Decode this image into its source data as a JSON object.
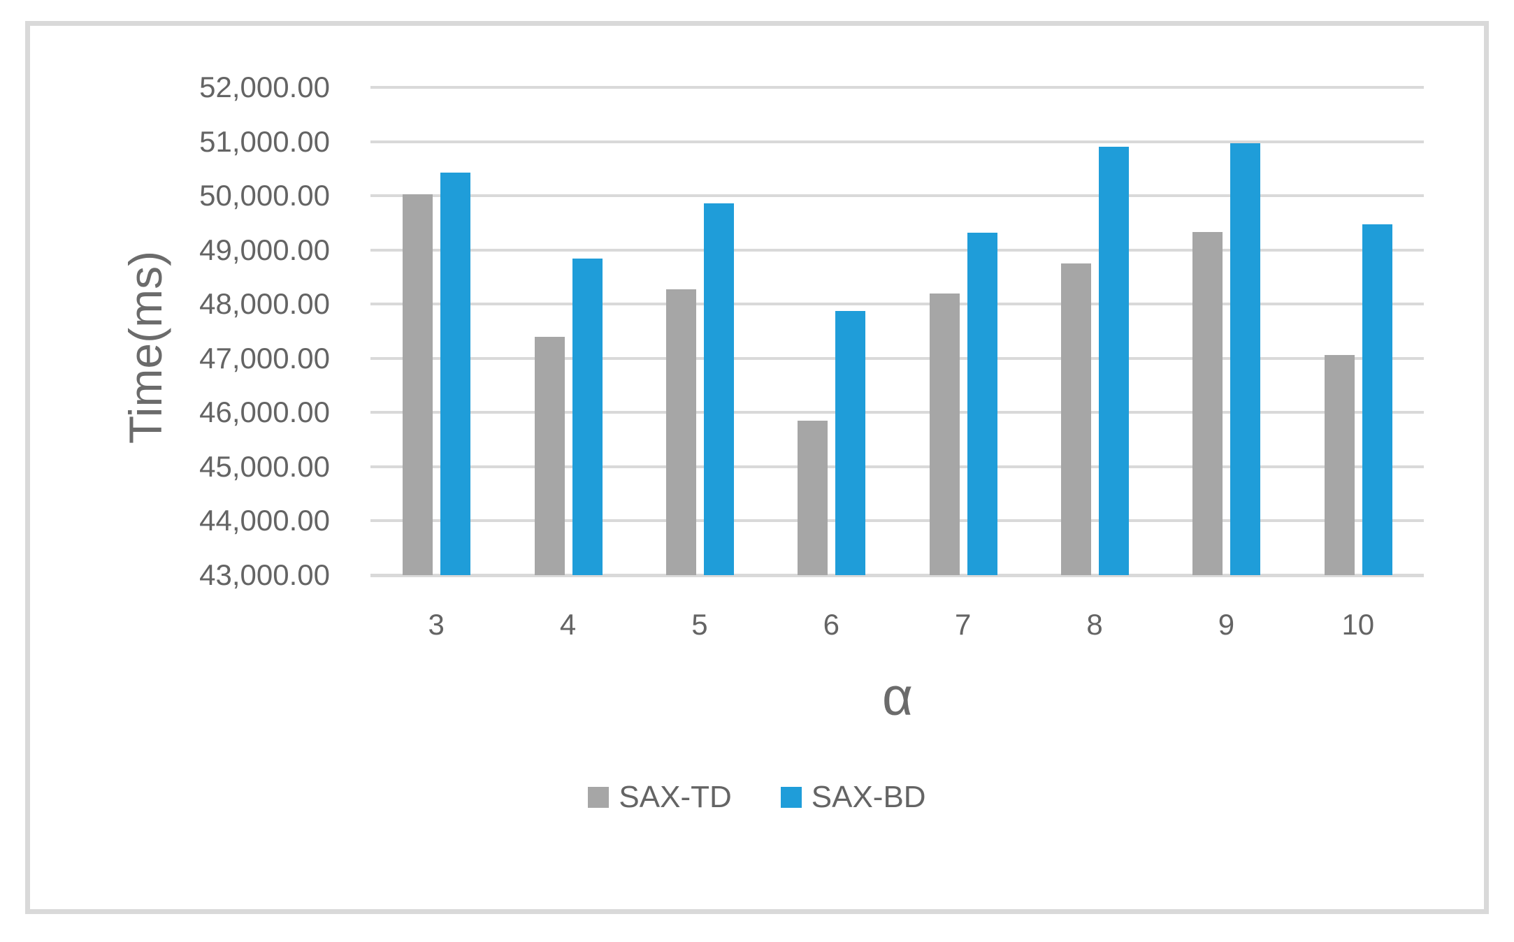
{
  "chart_data": {
    "type": "bar",
    "categories": [
      "3",
      "4",
      "5",
      "6",
      "7",
      "8",
      "9",
      "10"
    ],
    "series": [
      {
        "name": "SAX-TD",
        "color": "#A6A6A6",
        "values": [
          50030,
          47400,
          48270,
          45850,
          48200,
          48750,
          49330,
          47060
        ]
      },
      {
        "name": "SAX-BD",
        "color": "#1F9DD9",
        "values": [
          50430,
          48840,
          49860,
          47870,
          49320,
          50900,
          50970,
          49470
        ]
      }
    ],
    "title": "",
    "xlabel": "α",
    "ylabel": "Time(ms)",
    "ylim": [
      43000,
      52000
    ],
    "y_tick_step": 1000,
    "y_tick_labels": [
      "52,000.00",
      "51,000.00",
      "50,000.00",
      "49,000.00",
      "48,000.00",
      "47,000.00",
      "46,000.00",
      "45,000.00",
      "44,000.00",
      "43,000.00"
    ],
    "grid": "horizontal",
    "legend_position": "bottom",
    "gridline_color": "#D9D9D9",
    "axis_line_color": "#D9D9D9",
    "text_color": "#646464",
    "frame_border_color": "#D9D9D9"
  }
}
